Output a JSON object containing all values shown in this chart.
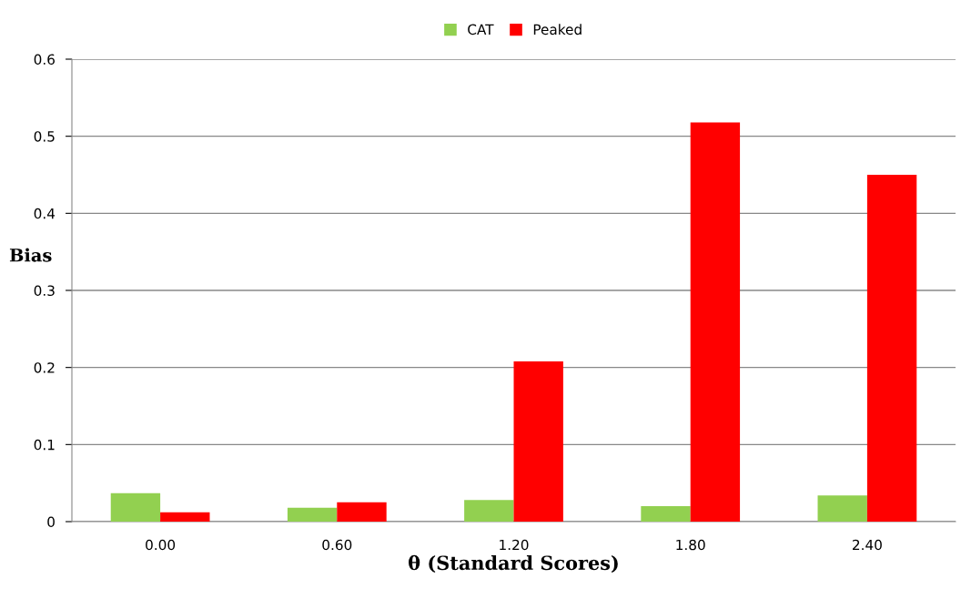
{
  "chart_data": {
    "type": "bar",
    "xlabel": "θ (Standard Scores)",
    "ylabel": "Bias",
    "categories": [
      "0.00",
      "0.60",
      "1.20",
      "1.80",
      "2.40"
    ],
    "series": [
      {
        "name": "CAT",
        "color": "#92d050",
        "values": [
          0.037,
          0.018,
          0.028,
          0.02,
          0.034
        ]
      },
      {
        "name": "Peaked",
        "color": "#ff0000",
        "values": [
          0.012,
          0.025,
          0.208,
          0.518,
          0.45
        ]
      }
    ],
    "ylim": [
      0,
      0.6
    ],
    "yticks": [
      {
        "value": 0,
        "label": "0"
      },
      0.1,
      0.2,
      0.3,
      0.4,
      0.5,
      0.6
    ],
    "grid": "y",
    "legend": "top"
  }
}
